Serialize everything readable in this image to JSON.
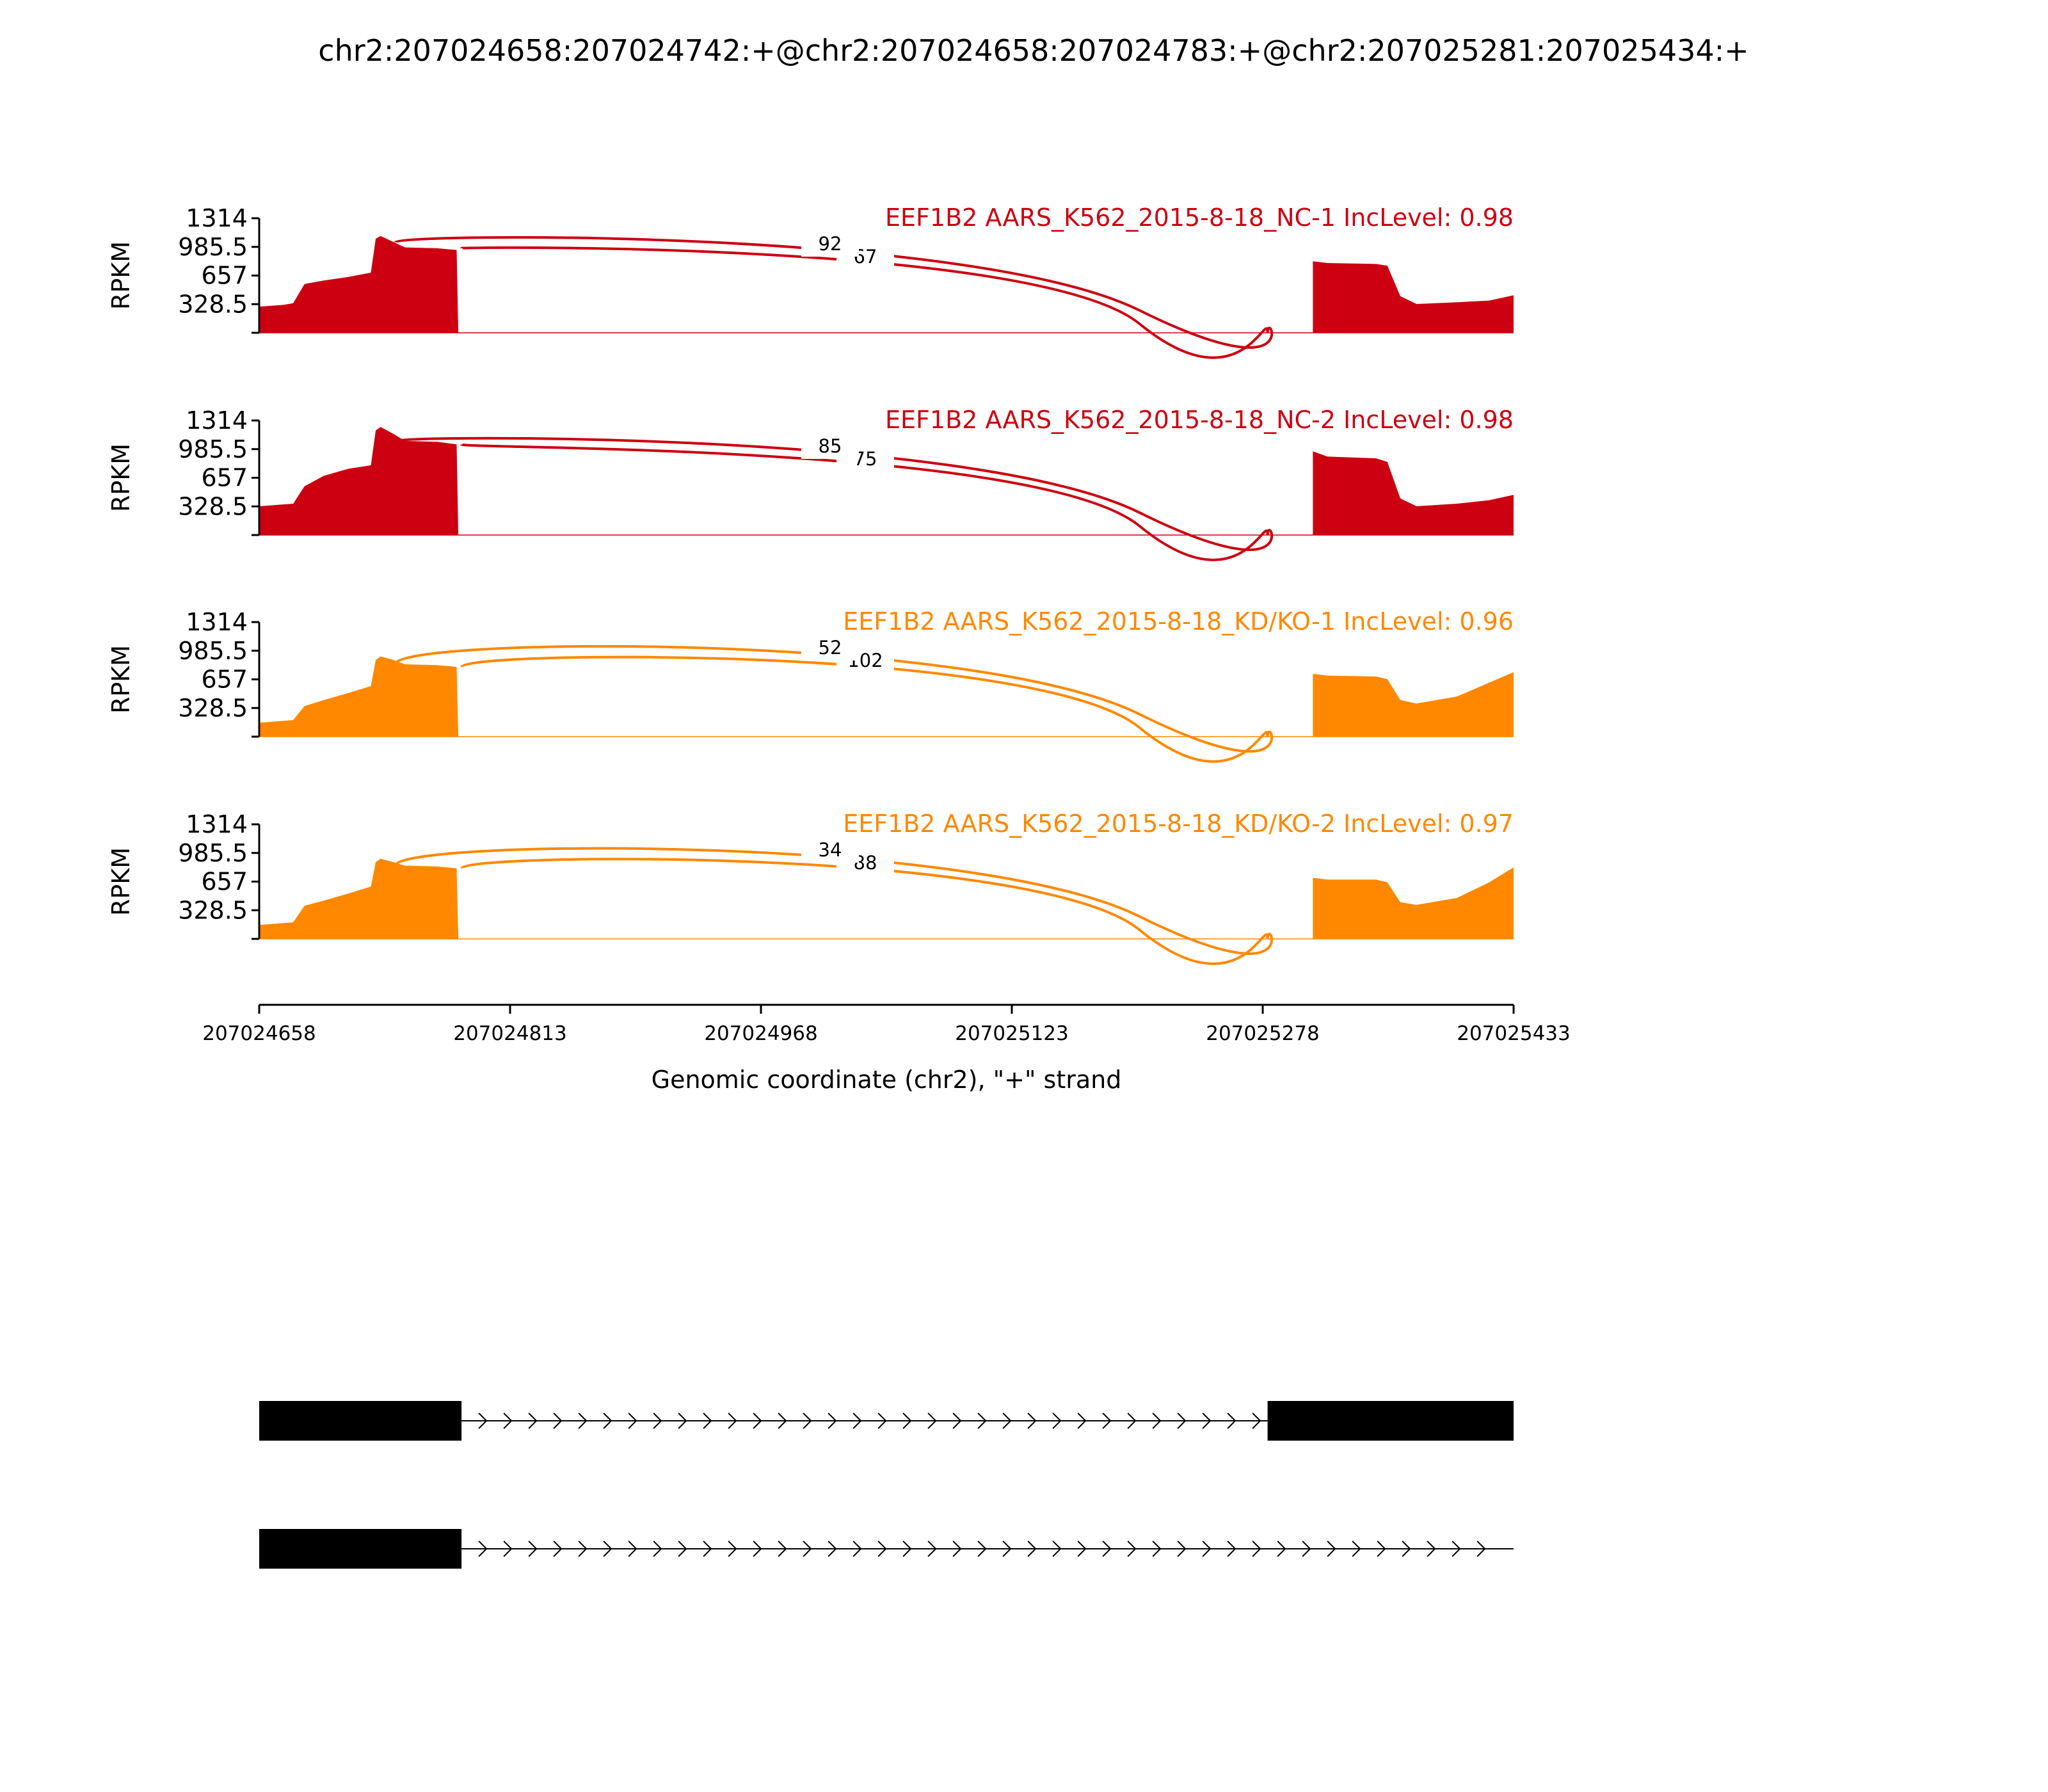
{
  "chart_data": {
    "type": "area",
    "title": "chr2:207024658:207024742:+@chr2:207024658:207024783:+@chr2:207025281:207025434:+",
    "xlabel": "Genomic coordinate (chr2), \"+\" strand",
    "ylabel": "RPKM",
    "xlim": [
      207024658,
      207025433
    ],
    "xticks": [
      "207024658",
      "207024813",
      "207024968",
      "207025123",
      "207025278",
      "207025433"
    ],
    "ylim": [
      0,
      1314
    ],
    "yticks": [
      "1314",
      "985.5",
      "657",
      "328.5"
    ],
    "panels": [
      {
        "label": "EEF1B2 AARS_K562_2015-8-18_NC-1 IncLevel: 0.98",
        "color": "#cc0011",
        "profile": [
          [
            0,
            300
          ],
          [
            15,
            320
          ],
          [
            21,
            340
          ],
          [
            28,
            560
          ],
          [
            40,
            600
          ],
          [
            55,
            640
          ],
          [
            69,
            690
          ],
          [
            72,
            1080
          ],
          [
            75,
            1110
          ],
          [
            83,
            1040
          ],
          [
            90,
            980
          ],
          [
            110,
            970
          ],
          [
            122,
            950
          ],
          [
            123,
            0
          ],
          [
            651,
            0
          ],
          [
            651,
            820
          ],
          [
            660,
            800
          ],
          [
            690,
            790
          ],
          [
            697,
            770
          ],
          [
            705,
            420
          ],
          [
            715,
            330
          ],
          [
            740,
            350
          ],
          [
            760,
            370
          ],
          [
            775,
            430
          ]
        ],
        "junctions": [
          {
            "start": 207024742,
            "end": 207025281,
            "count": "92"
          },
          {
            "start": 207024783,
            "end": 207025281,
            "count": "67"
          }
        ]
      },
      {
        "label": "EEF1B2 AARS_K562_2015-8-18_NC-2 IncLevel: 0.98",
        "color": "#cc0011",
        "profile": [
          [
            0,
            330
          ],
          [
            21,
            360
          ],
          [
            28,
            560
          ],
          [
            40,
            680
          ],
          [
            55,
            760
          ],
          [
            69,
            800
          ],
          [
            72,
            1200
          ],
          [
            75,
            1240
          ],
          [
            83,
            1160
          ],
          [
            90,
            1080
          ],
          [
            110,
            1070
          ],
          [
            122,
            1040
          ],
          [
            123,
            0
          ],
          [
            651,
            0
          ],
          [
            651,
            960
          ],
          [
            660,
            900
          ],
          [
            690,
            880
          ],
          [
            697,
            840
          ],
          [
            705,
            420
          ],
          [
            715,
            330
          ],
          [
            740,
            360
          ],
          [
            760,
            400
          ],
          [
            775,
            460
          ]
        ],
        "junctions": [
          {
            "start": 207024742,
            "end": 207025281,
            "count": "85"
          },
          {
            "start": 207024783,
            "end": 207025281,
            "count": "75"
          }
        ]
      },
      {
        "label": "EEF1B2 AARS_K562_2015-8-18_KD/KO-1 IncLevel: 0.96",
        "color": "#ff8800",
        "profile": [
          [
            0,
            160
          ],
          [
            21,
            190
          ],
          [
            28,
            350
          ],
          [
            40,
            420
          ],
          [
            55,
            500
          ],
          [
            69,
            580
          ],
          [
            72,
            880
          ],
          [
            75,
            920
          ],
          [
            83,
            880
          ],
          [
            90,
            830
          ],
          [
            110,
            820
          ],
          [
            122,
            800
          ],
          [
            123,
            0
          ],
          [
            651,
            0
          ],
          [
            651,
            720
          ],
          [
            660,
            700
          ],
          [
            690,
            690
          ],
          [
            697,
            660
          ],
          [
            705,
            420
          ],
          [
            715,
            380
          ],
          [
            740,
            460
          ],
          [
            760,
            620
          ],
          [
            775,
            740
          ]
        ],
        "junctions": [
          {
            "start": 207024742,
            "end": 207025281,
            "count": "52"
          },
          {
            "start": 207024783,
            "end": 207025281,
            "count": "102"
          }
        ]
      },
      {
        "label": "EEF1B2 AARS_K562_2015-8-18_KD/KO-2 IncLevel: 0.97",
        "color": "#ff8800",
        "profile": [
          [
            0,
            160
          ],
          [
            21,
            190
          ],
          [
            28,
            380
          ],
          [
            40,
            440
          ],
          [
            55,
            520
          ],
          [
            69,
            600
          ],
          [
            72,
            880
          ],
          [
            75,
            920
          ],
          [
            83,
            880
          ],
          [
            90,
            840
          ],
          [
            110,
            830
          ],
          [
            122,
            810
          ],
          [
            123,
            0
          ],
          [
            651,
            0
          ],
          [
            651,
            700
          ],
          [
            660,
            680
          ],
          [
            690,
            680
          ],
          [
            697,
            650
          ],
          [
            705,
            420
          ],
          [
            715,
            390
          ],
          [
            740,
            470
          ],
          [
            760,
            650
          ],
          [
            775,
            820
          ]
        ],
        "junctions": [
          {
            "start": 207024742,
            "end": 207025281,
            "count": "34"
          },
          {
            "start": 207024783,
            "end": 207025281,
            "count": "88"
          }
        ]
      }
    ],
    "transcripts": [
      {
        "exons": [
          [
            207024658,
            207024783
          ],
          [
            207025281,
            207025433
          ]
        ]
      },
      {
        "exons": [
          [
            207024658,
            207024783
          ]
        ]
      }
    ]
  }
}
